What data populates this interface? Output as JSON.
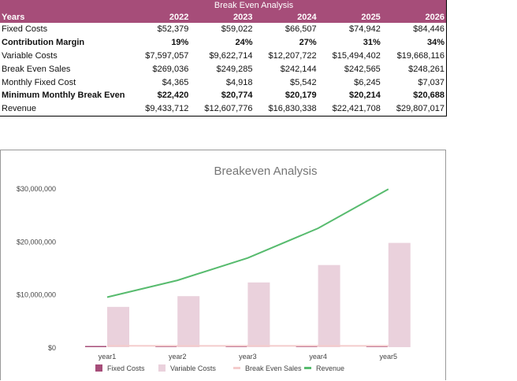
{
  "table": {
    "title": "Break Even Analysis",
    "header": [
      "Years",
      "2022",
      "2023",
      "2024",
      "2025",
      "2026"
    ],
    "rows": [
      {
        "label": "Fixed Costs",
        "bold": false,
        "values": [
          "$52,379",
          "$59,022",
          "$66,507",
          "$74,942",
          "$84,446"
        ]
      },
      {
        "label": "Contribution Margin",
        "bold": true,
        "values": [
          "19%",
          "24%",
          "27%",
          "31%",
          "34%"
        ]
      },
      {
        "label": "Variable Costs",
        "bold": false,
        "values": [
          "$7,597,057",
          "$9,622,714",
          "$12,207,722",
          "$15,494,402",
          "$19,668,116"
        ]
      },
      {
        "label": "Break Even Sales",
        "bold": false,
        "values": [
          "$269,036",
          "$249,285",
          "$242,144",
          "$242,565",
          "$248,261"
        ]
      },
      {
        "label": "Monthly Fixed Cost",
        "bold": false,
        "values": [
          "$4,365",
          "$4,918",
          "$5,542",
          "$6,245",
          "$7,037"
        ]
      },
      {
        "label": "Minimum Monthly Break Even",
        "bold": true,
        "values": [
          "$22,420",
          "$20,774",
          "$20,179",
          "$20,214",
          "$20,688"
        ]
      },
      {
        "label": "Revenue",
        "bold": false,
        "values": [
          "$9,433,712",
          "$12,607,776",
          "$16,830,338",
          "$22,421,708",
          "$29,807,017"
        ]
      }
    ]
  },
  "chart_data": {
    "type": "bar",
    "title": "Breakeven Analysis",
    "categories": [
      "year1",
      "year2",
      "year3",
      "year4",
      "year5"
    ],
    "ylim": [
      0,
      30000000
    ],
    "yticks": [
      "$0",
      "$10,000,000",
      "$20,000,000",
      "$30,000,000"
    ],
    "grid": false,
    "legend": "bottom",
    "series": [
      {
        "name": "Fixed Costs",
        "kind": "bar",
        "color": "#a64d79",
        "values": [
          52379,
          59022,
          66507,
          74942,
          84446
        ]
      },
      {
        "name": "Variable Costs",
        "kind": "bar",
        "color": "#ead1dc",
        "values": [
          7597057,
          9622714,
          12207722,
          15494402,
          19668116
        ]
      },
      {
        "name": "Break Even Sales",
        "kind": "line",
        "color": "#f4cccc",
        "values": [
          269036,
          249285,
          242144,
          242565,
          248261
        ]
      },
      {
        "name": "Revenue",
        "kind": "line",
        "color": "#57bb6e",
        "values": [
          9433712,
          12607776,
          16830338,
          22421708,
          29807017
        ]
      }
    ]
  }
}
